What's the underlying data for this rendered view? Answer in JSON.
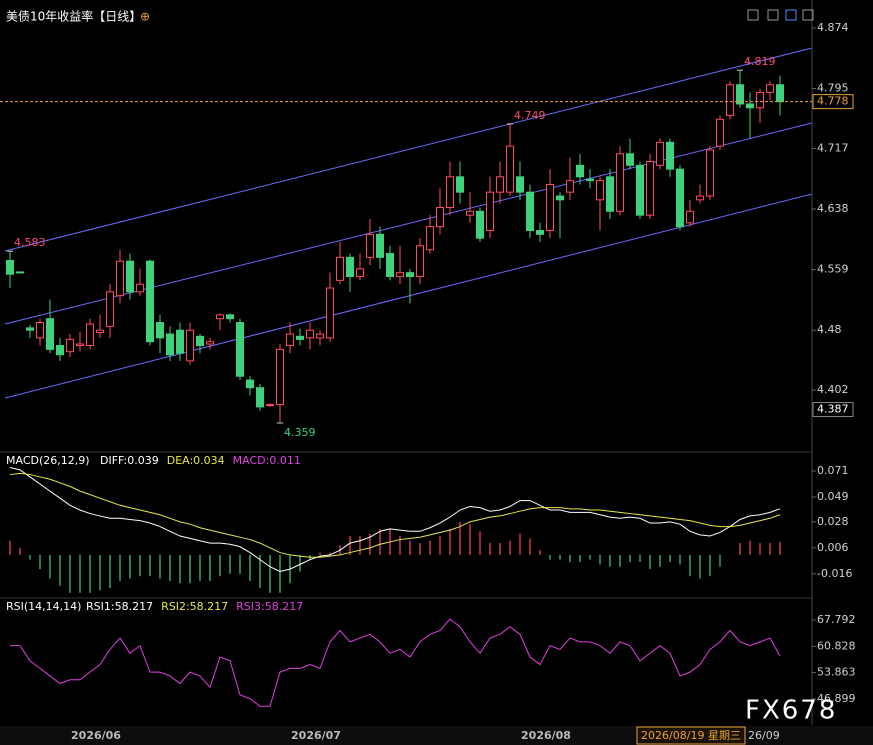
{
  "chart_data": [
    {
      "type": "candlestick",
      "title": "美债10年收益率【日线】",
      "categories": [
        null,
        null,
        null,
        null,
        null,
        null,
        null,
        null,
        "2026/06",
        null,
        null,
        null,
        null,
        null,
        null,
        null,
        null,
        null,
        null,
        null,
        null,
        null,
        null,
        null,
        null,
        null,
        null,
        null,
        null,
        null,
        "2026/07",
        null,
        null,
        null,
        null,
        null,
        null,
        null,
        null,
        null,
        null,
        null,
        null,
        null,
        null,
        null,
        null,
        null,
        null,
        null,
        null,
        null,
        null,
        "2026/08",
        null,
        null,
        null,
        null,
        null,
        null,
        null,
        null,
        null,
        null,
        null,
        null,
        null,
        null,
        null,
        null,
        null,
        null,
        null,
        null,
        null,
        null,
        null,
        null
      ],
      "open": [
        4.571,
        4.556,
        4.483,
        4.47,
        4.495,
        4.46,
        4.452,
        4.46,
        4.46,
        4.477,
        4.485,
        4.525,
        4.57,
        4.53,
        4.57,
        4.49,
        4.475,
        4.48,
        4.44,
        4.472,
        4.462,
        4.495,
        4.5,
        4.49,
        4.415,
        4.405,
        4.382,
        4.383,
        4.46,
        4.472,
        4.47,
        4.47,
        4.47,
        4.545,
        4.575,
        4.55,
        4.575,
        4.605,
        4.58,
        4.55,
        4.555,
        4.55,
        4.585,
        4.615,
        4.64,
        4.68,
        4.63,
        4.635,
        4.61,
        4.66,
        4.66,
        4.68,
        4.66,
        4.61,
        4.61,
        4.655,
        4.66,
        4.695,
        4.677,
        4.65,
        4.68,
        4.635,
        4.71,
        4.695,
        4.63,
        4.695,
        4.725,
        4.69,
        4.62,
        4.65,
        4.655,
        4.72,
        4.76,
        4.8,
        4.775,
        4.77,
        4.79,
        4.8
      ],
      "high": [
        4.583,
        4.556,
        4.487,
        4.495,
        4.52,
        4.47,
        4.475,
        4.478,
        4.495,
        4.5,
        4.54,
        4.585,
        4.58,
        4.56,
        4.572,
        4.5,
        4.485,
        4.49,
        4.49,
        4.475,
        4.47,
        4.502,
        4.502,
        4.495,
        4.42,
        4.41,
        4.385,
        4.462,
        4.49,
        4.482,
        4.49,
        4.48,
        4.555,
        4.595,
        4.58,
        4.58,
        4.625,
        4.615,
        4.59,
        4.59,
        4.56,
        4.6,
        4.63,
        4.665,
        4.7,
        4.7,
        4.66,
        4.64,
        4.68,
        4.7,
        4.749,
        4.7,
        4.67,
        4.62,
        4.69,
        4.66,
        4.705,
        4.71,
        4.69,
        4.68,
        4.69,
        4.72,
        4.73,
        4.7,
        4.71,
        4.73,
        4.73,
        4.695,
        4.65,
        4.67,
        4.72,
        4.76,
        4.805,
        4.819,
        4.79,
        4.795,
        4.805,
        4.812
      ],
      "low": [
        4.535,
        4.554,
        4.47,
        4.46,
        4.45,
        4.44,
        4.445,
        4.452,
        4.455,
        4.47,
        4.47,
        4.515,
        4.52,
        4.525,
        4.46,
        4.45,
        4.44,
        4.44,
        4.435,
        4.45,
        4.455,
        4.48,
        4.49,
        4.415,
        4.395,
        4.375,
        4.38,
        4.359,
        4.45,
        4.46,
        4.455,
        4.46,
        4.465,
        4.54,
        4.53,
        4.545,
        4.565,
        4.56,
        4.545,
        4.54,
        4.515,
        4.54,
        4.58,
        4.605,
        4.63,
        4.645,
        4.62,
        4.595,
        4.6,
        4.645,
        4.655,
        4.65,
        4.6,
        4.595,
        4.6,
        4.6,
        4.65,
        4.67,
        4.665,
        4.61,
        4.625,
        4.63,
        4.69,
        4.625,
        4.625,
        4.69,
        4.68,
        4.61,
        4.615,
        4.645,
        4.65,
        4.715,
        4.755,
        4.77,
        4.73,
        4.75,
        4.78,
        4.76
      ],
      "close": [
        4.553,
        4.555,
        4.48,
        4.49,
        4.455,
        4.448,
        4.468,
        4.462,
        4.488,
        4.48,
        4.53,
        4.57,
        4.53,
        4.54,
        4.465,
        4.47,
        4.448,
        4.45,
        4.48,
        4.46,
        4.465,
        4.5,
        4.495,
        4.42,
        4.405,
        4.38,
        4.383,
        4.455,
        4.475,
        4.468,
        4.48,
        4.475,
        4.535,
        4.575,
        4.55,
        4.56,
        4.605,
        4.575,
        4.55,
        4.555,
        4.55,
        4.59,
        4.615,
        4.64,
        4.68,
        4.66,
        4.635,
        4.6,
        4.66,
        4.68,
        4.72,
        4.66,
        4.61,
        4.605,
        4.67,
        4.65,
        4.675,
        4.68,
        4.675,
        4.675,
        4.635,
        4.71,
        4.695,
        4.63,
        4.7,
        4.725,
        4.69,
        4.615,
        4.635,
        4.655,
        4.715,
        4.755,
        4.8,
        4.775,
        4.77,
        4.79,
        4.8,
        4.778
      ],
      "up_color": "#ff4b5c",
      "down_color": "#3fd17c",
      "ylim": [
        4.3238,
        4.8975
      ],
      "yticks": [
        4.874,
        4.795,
        4.717,
        4.638,
        4.559,
        4.48,
        4.402
      ],
      "current_price": 4.778,
      "axis_marker": 4.387,
      "annotations": [
        4.583,
        4.749,
        4.819,
        4.359
      ],
      "cursor_label": "2026/08/19 星期三",
      "next_label": "26/09",
      "watermark": "FX678"
    },
    {
      "type": "macd",
      "title": "MACD(26,12,9)",
      "ylim": [
        -0.0356,
        0.0854
      ],
      "yticks": [
        0.071,
        0.049,
        0.028,
        0.006,
        -0.016
      ],
      "series": [
        {
          "label": "DIFF:0.039",
          "color": "#ffffff",
          "values": [
            0.074,
            0.072,
            0.066,
            0.06,
            0.054,
            0.048,
            0.042,
            0.038,
            0.035,
            0.033,
            0.031,
            0.031,
            0.03,
            0.029,
            0.027,
            0.024,
            0.02,
            0.016,
            0.014,
            0.012,
            0.01,
            0.01,
            0.009,
            0.007,
            0.002,
            -0.004,
            -0.01,
            -0.014,
            -0.012,
            -0.008,
            -0.004,
            -0.001,
            0.0,
            0.004,
            0.01,
            0.012,
            0.015,
            0.02,
            0.022,
            0.021,
            0.02,
            0.02,
            0.023,
            0.027,
            0.032,
            0.038,
            0.041,
            0.04,
            0.037,
            0.038,
            0.041,
            0.046,
            0.046,
            0.042,
            0.038,
            0.038,
            0.036,
            0.036,
            0.036,
            0.034,
            0.032,
            0.031,
            0.032,
            0.031,
            0.027,
            0.027,
            0.028,
            0.026,
            0.02,
            0.017,
            0.016,
            0.019,
            0.024,
            0.03,
            0.033,
            0.034,
            0.036,
            0.039
          ]
        },
        {
          "label": "DEA:0.034",
          "color": "#e8e84a",
          "values": [
            0.068,
            0.069,
            0.068,
            0.066,
            0.064,
            0.061,
            0.058,
            0.054,
            0.051,
            0.048,
            0.045,
            0.042,
            0.04,
            0.038,
            0.036,
            0.034,
            0.031,
            0.028,
            0.026,
            0.023,
            0.021,
            0.019,
            0.017,
            0.015,
            0.013,
            0.01,
            0.006,
            0.002,
            0.0,
            -0.001,
            -0.002,
            -0.002,
            -0.001,
            0.0,
            0.002,
            0.004,
            0.006,
            0.009,
            0.011,
            0.013,
            0.014,
            0.015,
            0.017,
            0.019,
            0.021,
            0.024,
            0.028,
            0.03,
            0.032,
            0.033,
            0.035,
            0.037,
            0.039,
            0.04,
            0.04,
            0.04,
            0.039,
            0.039,
            0.038,
            0.038,
            0.037,
            0.036,
            0.035,
            0.034,
            0.033,
            0.032,
            0.031,
            0.03,
            0.029,
            0.027,
            0.025,
            0.024,
            0.024,
            0.025,
            0.027,
            0.029,
            0.031,
            0.034
          ]
        },
        {
          "label": "MACD:0.011",
          "color": "#e040e0",
          "up_color": "#ff4b5c",
          "down_color": "#3fd17c",
          "values": [
            0.012,
            0.006,
            -0.004,
            -0.012,
            -0.02,
            -0.026,
            -0.032,
            -0.032,
            -0.032,
            -0.03,
            -0.028,
            -0.022,
            -0.02,
            -0.018,
            -0.018,
            -0.02,
            -0.022,
            -0.024,
            -0.024,
            -0.022,
            -0.022,
            -0.018,
            -0.016,
            -0.016,
            -0.022,
            -0.028,
            -0.032,
            -0.032,
            -0.024,
            -0.014,
            -0.004,
            0.002,
            0.002,
            0.008,
            0.016,
            0.016,
            0.018,
            0.022,
            0.022,
            0.016,
            0.012,
            0.01,
            0.012,
            0.016,
            0.022,
            0.028,
            0.026,
            0.02,
            0.01,
            0.01,
            0.012,
            0.018,
            0.014,
            0.004,
            -0.004,
            -0.004,
            -0.006,
            -0.006,
            -0.004,
            -0.008,
            -0.01,
            -0.01,
            -0.006,
            -0.006,
            -0.012,
            -0.01,
            -0.006,
            -0.008,
            -0.018,
            -0.02,
            -0.018,
            -0.01,
            0.0,
            0.01,
            0.012,
            0.01,
            0.01,
            0.011
          ]
        }
      ]
    },
    {
      "type": "rsi",
      "title": "RSI(14,14,14)",
      "ylim": [
        37.4,
        72.0
      ],
      "yticks": [
        67.792,
        60.828,
        53.863,
        46.899
      ],
      "series": [
        {
          "label": "RSI1:58.217",
          "color": "#ffffff"
        },
        {
          "label": "RSI2:58.217",
          "color": "#e8e84a"
        },
        {
          "label": "RSI3:58.217",
          "color": "#e040e0",
          "values": [
            61,
            61,
            57,
            55,
            53,
            51,
            52,
            52,
            54,
            56,
            60,
            63,
            59,
            61,
            54,
            54,
            53,
            51,
            54,
            53,
            50,
            58,
            57,
            48,
            47,
            45,
            45,
            54,
            55,
            55,
            56,
            55,
            62,
            65,
            62,
            63,
            64,
            62,
            59,
            60,
            58,
            62,
            64,
            65,
            68,
            66,
            62,
            59,
            63,
            64,
            66,
            64,
            58,
            56,
            61,
            60,
            63,
            62,
            62,
            61,
            59,
            62,
            61,
            57,
            59,
            61,
            59,
            53,
            54,
            56,
            60,
            62,
            65,
            62,
            61,
            62,
            63,
            58.217
          ]
        }
      ]
    }
  ]
}
